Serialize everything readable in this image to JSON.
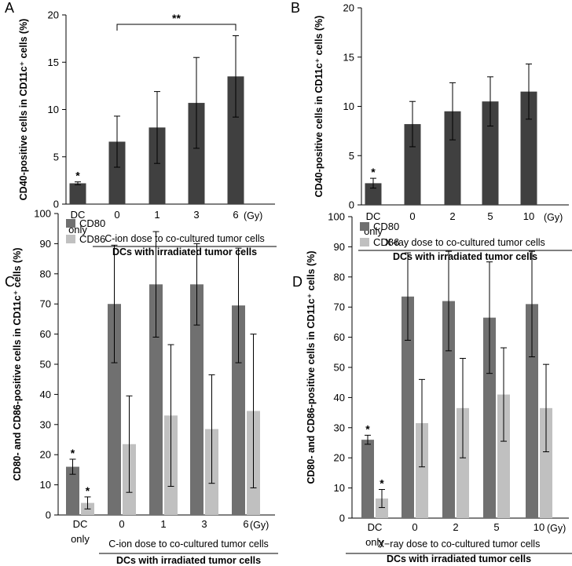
{
  "chart_data": [
    {
      "panel": "A",
      "type": "bar",
      "ylabel": "CD40-positive cells in CD11c⁺ cells  (%)",
      "ylim": [
        0,
        20
      ],
      "yticks": [
        0,
        5,
        10,
        15,
        20
      ],
      "categories": [
        "DC only",
        "0",
        "1",
        "3",
        "6"
      ],
      "unit_label": "(Gy)",
      "series": [
        {
          "name": "CD40",
          "color": "#404040",
          "values": [
            2.2,
            6.6,
            8.1,
            10.7,
            13.5
          ],
          "errors": [
            0.15,
            2.7,
            3.8,
            4.8,
            4.3
          ]
        }
      ],
      "dose_label": "C-ion dose to co-cultured tumor cells",
      "group_label": "DCs with irradiated tumor cells",
      "stars": [
        {
          "category": 0,
          "text": "*"
        }
      ],
      "bracket": {
        "from": 1,
        "to": 4,
        "text": "**"
      }
    },
    {
      "panel": "B",
      "type": "bar",
      "ylabel": "CD40-positive cells in CD11c⁺ cells  (%)",
      "ylim": [
        0,
        20
      ],
      "yticks": [
        0,
        5,
        10,
        15,
        20
      ],
      "categories": [
        "DC only",
        "0",
        "2",
        "5",
        "10"
      ],
      "unit_label": "(Gy)",
      "series": [
        {
          "name": "CD40",
          "color": "#404040",
          "values": [
            2.2,
            8.2,
            9.5,
            10.5,
            11.5
          ],
          "errors": [
            0.5,
            2.3,
            2.9,
            2.5,
            2.8
          ]
        }
      ],
      "dose_label": "X-ray dose to co-cultured tumor cells",
      "group_label": "DCs with irradiated tumor cells",
      "stars": [
        {
          "category": 0,
          "text": "*"
        }
      ]
    },
    {
      "panel": "C",
      "type": "bar",
      "ylabel": "CD80- and CD86-positive cells in CD11c⁺ cells (%)",
      "ylim": [
        0,
        100
      ],
      "yticks": [
        0,
        10,
        20,
        30,
        40,
        50,
        60,
        70,
        80,
        90,
        100
      ],
      "categories": [
        "DC only",
        "0",
        "1",
        "3",
        "6"
      ],
      "unit_label": "(Gy)",
      "series": [
        {
          "name": "CD80",
          "color": "#707070",
          "values": [
            16,
            70,
            76.5,
            76.5,
            69.5
          ],
          "errors": [
            2.5,
            19.5,
            17.5,
            13.5,
            19
          ]
        },
        {
          "name": "CD86",
          "color": "#c0c0c0",
          "values": [
            4,
            23.5,
            33,
            28.5,
            34.5
          ],
          "errors": [
            2,
            16,
            23.5,
            18,
            25.5
          ]
        }
      ],
      "dose_label": "C-ion dose to co-cultured tumor cells",
      "group_label": "DCs with irradiated tumor cells",
      "stars": [
        {
          "category": 0,
          "series": 0,
          "text": "*"
        },
        {
          "category": 0,
          "series": 1,
          "text": "*"
        }
      ]
    },
    {
      "panel": "D",
      "type": "bar",
      "ylabel": "CD80- and CD86-positive cells in CD11c⁺ cells (%)",
      "ylim": [
        0,
        100
      ],
      "yticks": [
        0,
        10,
        20,
        30,
        40,
        50,
        60,
        70,
        80,
        90,
        100
      ],
      "categories": [
        "DC only",
        "0",
        "2",
        "5",
        "10"
      ],
      "unit_label": "(Gy)",
      "series": [
        {
          "name": "CD80",
          "color": "#707070",
          "values": [
            26,
            73.5,
            72,
            66.5,
            71
          ],
          "errors": [
            1.5,
            14.5,
            16.5,
            18.5,
            17.5
          ]
        },
        {
          "name": "CD86",
          "color": "#c0c0c0",
          "values": [
            6.5,
            31.5,
            36.5,
            41,
            36.5
          ],
          "errors": [
            3,
            14.5,
            16.5,
            15.5,
            14.5
          ]
        }
      ],
      "dose_label": "X−ray dose to co-cultured tumor cells",
      "group_label": "DCs with irradiated tumor cells",
      "stars": [
        {
          "category": 0,
          "series": 0,
          "text": "*"
        },
        {
          "category": 0,
          "series": 1,
          "text": "*"
        }
      ]
    }
  ]
}
